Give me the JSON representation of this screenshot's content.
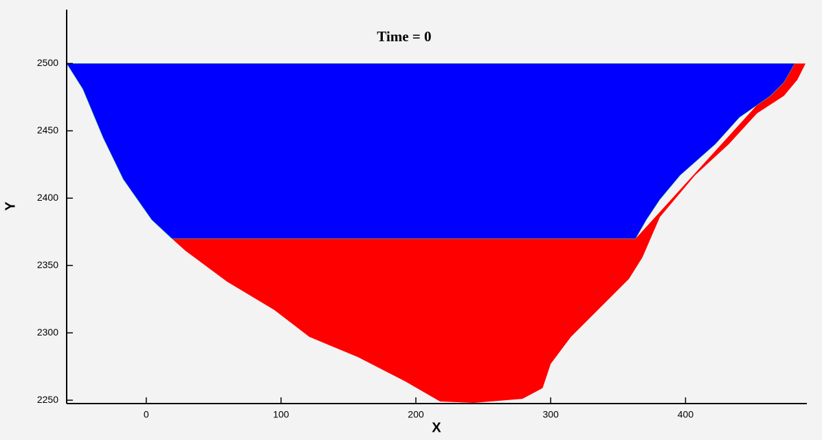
{
  "chart_data": {
    "type": "region",
    "title": "Time = 0",
    "x_label": "X",
    "y_label": "Y",
    "xlim": [
      -59,
      490
    ],
    "ylim": [
      2247.5,
      2540
    ],
    "xticks": [
      0,
      100,
      200,
      300,
      400
    ],
    "yticks": [
      2250,
      2300,
      2350,
      2400,
      2450,
      2500
    ],
    "series": [
      {
        "color": "#ff0000",
        "x": [
          19,
          363,
          481,
          489,
          483,
          473,
          453,
          432,
          407,
          381,
          368,
          358,
          340,
          315,
          300,
          294,
          279,
          243,
          218,
          192,
          157,
          121,
          95,
          60,
          29
        ],
        "y": [
          2370,
          2370,
          2500,
          2500,
          2488,
          2476,
          2463,
          2440,
          2417,
          2386,
          2356,
          2340,
          2322,
          2297,
          2277,
          2259,
          2251,
          2248,
          2249,
          2264,
          2282,
          2297,
          2317,
          2338,
          2361
        ]
      },
      {
        "color": "#0000ff",
        "x": [
          -59,
          481,
          473,
          463,
          440,
          422,
          396,
          381,
          371,
          363,
          19,
          4,
          -17,
          -32,
          -47
        ],
        "y": [
          2500,
          2500,
          2486,
          2476,
          2460,
          2440,
          2417,
          2399,
          2384,
          2370,
          2370,
          2384,
          2414,
          2445,
          2481
        ]
      }
    ]
  }
}
